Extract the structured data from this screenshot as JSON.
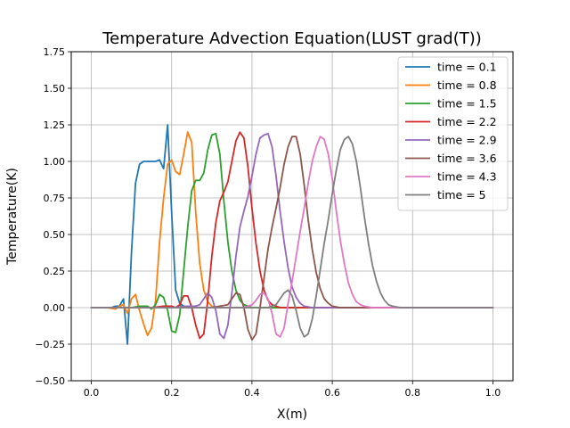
{
  "chart_data": {
    "type": "line",
    "title": "Temperature Advection Equation(LUST grad(T))",
    "xlabel": "X(m)",
    "ylabel": "Temperature(K)",
    "xlim": [
      -0.05,
      1.05
    ],
    "ylim": [
      -0.5,
      1.75
    ],
    "xticks": [
      0.0,
      0.2,
      0.4,
      0.6,
      0.8,
      1.0
    ],
    "xtick_labels": [
      "0.0",
      "0.2",
      "0.4",
      "0.6",
      "0.8",
      "1.0"
    ],
    "yticks": [
      -0.5,
      -0.25,
      0.0,
      0.25,
      0.5,
      0.75,
      1.0,
      1.25,
      1.5,
      1.75
    ],
    "ytick_labels": [
      "−0.50",
      "−0.25",
      "0.00",
      "0.25",
      "0.50",
      "0.75",
      "1.00",
      "1.25",
      "1.50",
      "1.75"
    ],
    "grid": true,
    "legend_position": "top-right",
    "series": [
      {
        "name": "time = 0.1",
        "color": "#1f77b4",
        "points": [
          [
            0.0,
            0.0
          ],
          [
            0.01,
            0.0
          ],
          [
            0.02,
            0.0
          ],
          [
            0.03,
            0.0
          ],
          [
            0.04,
            0.0
          ],
          [
            0.05,
            0.0
          ],
          [
            0.06,
            0.01
          ],
          [
            0.07,
            0.01
          ],
          [
            0.08,
            0.06
          ],
          [
            0.09,
            -0.25
          ],
          [
            0.1,
            0.38
          ],
          [
            0.11,
            0.85
          ],
          [
            0.12,
            0.98
          ],
          [
            0.13,
            1.0
          ],
          [
            0.14,
            1.0
          ],
          [
            0.15,
            1.0
          ],
          [
            0.16,
            1.0
          ],
          [
            0.17,
            1.01
          ],
          [
            0.18,
            0.95
          ],
          [
            0.19,
            1.25
          ],
          [
            0.2,
            0.65
          ],
          [
            0.21,
            0.12
          ],
          [
            0.22,
            0.03
          ],
          [
            0.23,
            0.01
          ],
          [
            0.24,
            0.0
          ],
          [
            0.25,
            0.0
          ],
          [
            0.3,
            0.0
          ],
          [
            0.4,
            0.0
          ],
          [
            0.5,
            0.0
          ],
          [
            0.6,
            0.0
          ],
          [
            0.7,
            0.0
          ],
          [
            0.8,
            0.0
          ],
          [
            0.9,
            0.0
          ],
          [
            1.0,
            0.0
          ]
        ]
      },
      {
        "name": "time = 0.8",
        "color": "#ff7f0e",
        "points": [
          [
            0.0,
            0.0
          ],
          [
            0.02,
            0.0
          ],
          [
            0.04,
            0.0
          ],
          [
            0.06,
            -0.01
          ],
          [
            0.07,
            0.01
          ],
          [
            0.08,
            0.02
          ],
          [
            0.09,
            -0.04
          ],
          [
            0.1,
            0.06
          ],
          [
            0.11,
            0.09
          ],
          [
            0.12,
            -0.02
          ],
          [
            0.13,
            -0.11
          ],
          [
            0.14,
            -0.19
          ],
          [
            0.15,
            -0.14
          ],
          [
            0.16,
            0.05
          ],
          [
            0.17,
            0.45
          ],
          [
            0.18,
            0.75
          ],
          [
            0.19,
            0.98
          ],
          [
            0.2,
            1.01
          ],
          [
            0.21,
            0.93
          ],
          [
            0.22,
            0.91
          ],
          [
            0.23,
            1.05
          ],
          [
            0.24,
            1.2
          ],
          [
            0.25,
            1.13
          ],
          [
            0.26,
            0.65
          ],
          [
            0.27,
            0.3
          ],
          [
            0.28,
            0.12
          ],
          [
            0.29,
            0.04
          ],
          [
            0.3,
            0.01
          ],
          [
            0.31,
            0.0
          ],
          [
            0.35,
            0.0
          ],
          [
            0.45,
            0.0
          ],
          [
            0.6,
            0.0
          ],
          [
            0.8,
            0.0
          ],
          [
            1.0,
            0.0
          ]
        ]
      },
      {
        "name": "time = 1.5",
        "color": "#2ca02c",
        "points": [
          [
            0.0,
            0.0
          ],
          [
            0.05,
            0.0
          ],
          [
            0.1,
            0.0
          ],
          [
            0.12,
            0.01
          ],
          [
            0.14,
            0.01
          ],
          [
            0.15,
            -0.01
          ],
          [
            0.16,
            0.02
          ],
          [
            0.17,
            0.09
          ],
          [
            0.18,
            0.07
          ],
          [
            0.19,
            -0.02
          ],
          [
            0.2,
            -0.16
          ],
          [
            0.21,
            -0.17
          ],
          [
            0.22,
            -0.05
          ],
          [
            0.23,
            0.25
          ],
          [
            0.24,
            0.55
          ],
          [
            0.25,
            0.8
          ],
          [
            0.26,
            0.87
          ],
          [
            0.27,
            0.87
          ],
          [
            0.28,
            0.92
          ],
          [
            0.29,
            1.08
          ],
          [
            0.3,
            1.18
          ],
          [
            0.31,
            1.19
          ],
          [
            0.32,
            1.05
          ],
          [
            0.33,
            0.73
          ],
          [
            0.34,
            0.45
          ],
          [
            0.35,
            0.25
          ],
          [
            0.36,
            0.12
          ],
          [
            0.37,
            0.05
          ],
          [
            0.38,
            0.02
          ],
          [
            0.39,
            0.01
          ],
          [
            0.4,
            0.0
          ],
          [
            0.5,
            0.0
          ],
          [
            0.7,
            0.0
          ],
          [
            1.0,
            0.0
          ]
        ]
      },
      {
        "name": "time = 2.2",
        "color": "#d62728",
        "points": [
          [
            0.0,
            0.0
          ],
          [
            0.05,
            0.0
          ],
          [
            0.1,
            0.0
          ],
          [
            0.15,
            0.0
          ],
          [
            0.18,
            0.01
          ],
          [
            0.2,
            0.01
          ],
          [
            0.21,
            0.0
          ],
          [
            0.22,
            0.02
          ],
          [
            0.23,
            0.08
          ],
          [
            0.24,
            0.08
          ],
          [
            0.25,
            0.0
          ],
          [
            0.26,
            -0.12
          ],
          [
            0.27,
            -0.21
          ],
          [
            0.28,
            -0.18
          ],
          [
            0.29,
            0.05
          ],
          [
            0.3,
            0.35
          ],
          [
            0.31,
            0.58
          ],
          [
            0.32,
            0.73
          ],
          [
            0.33,
            0.79
          ],
          [
            0.34,
            0.86
          ],
          [
            0.35,
            1.0
          ],
          [
            0.36,
            1.14
          ],
          [
            0.37,
            1.2
          ],
          [
            0.38,
            1.16
          ],
          [
            0.39,
            0.96
          ],
          [
            0.4,
            0.68
          ],
          [
            0.41,
            0.44
          ],
          [
            0.42,
            0.25
          ],
          [
            0.43,
            0.12
          ],
          [
            0.44,
            0.05
          ],
          [
            0.45,
            0.02
          ],
          [
            0.46,
            0.01
          ],
          [
            0.47,
            0.0
          ],
          [
            0.6,
            0.0
          ],
          [
            0.8,
            0.0
          ],
          [
            1.0,
            0.0
          ]
        ]
      },
      {
        "name": "time = 2.9",
        "color": "#9467bd",
        "points": [
          [
            0.0,
            0.0
          ],
          [
            0.1,
            0.0
          ],
          [
            0.2,
            0.0
          ],
          [
            0.24,
            0.01
          ],
          [
            0.26,
            0.01
          ],
          [
            0.27,
            0.02
          ],
          [
            0.28,
            0.06
          ],
          [
            0.29,
            0.1
          ],
          [
            0.3,
            0.07
          ],
          [
            0.31,
            -0.02
          ],
          [
            0.32,
            -0.18
          ],
          [
            0.33,
            -0.21
          ],
          [
            0.34,
            -0.12
          ],
          [
            0.35,
            0.1
          ],
          [
            0.36,
            0.35
          ],
          [
            0.37,
            0.55
          ],
          [
            0.38,
            0.66
          ],
          [
            0.39,
            0.76
          ],
          [
            0.4,
            0.9
          ],
          [
            0.41,
            1.05
          ],
          [
            0.42,
            1.16
          ],
          [
            0.43,
            1.18
          ],
          [
            0.44,
            1.19
          ],
          [
            0.45,
            1.1
          ],
          [
            0.46,
            0.9
          ],
          [
            0.47,
            0.66
          ],
          [
            0.48,
            0.45
          ],
          [
            0.49,
            0.27
          ],
          [
            0.5,
            0.14
          ],
          [
            0.51,
            0.07
          ],
          [
            0.52,
            0.03
          ],
          [
            0.53,
            0.01
          ],
          [
            0.55,
            0.0
          ],
          [
            0.7,
            0.0
          ],
          [
            1.0,
            0.0
          ]
        ]
      },
      {
        "name": "time = 3.6",
        "color": "#8c564b",
        "points": [
          [
            0.0,
            0.0
          ],
          [
            0.1,
            0.0
          ],
          [
            0.2,
            0.0
          ],
          [
            0.3,
            0.0
          ],
          [
            0.32,
            0.01
          ],
          [
            0.34,
            0.02
          ],
          [
            0.35,
            0.06
          ],
          [
            0.36,
            0.1
          ],
          [
            0.37,
            0.09
          ],
          [
            0.38,
            0.0
          ],
          [
            0.39,
            -0.15
          ],
          [
            0.4,
            -0.22
          ],
          [
            0.41,
            -0.18
          ],
          [
            0.42,
            0.0
          ],
          [
            0.43,
            0.2
          ],
          [
            0.44,
            0.4
          ],
          [
            0.45,
            0.55
          ],
          [
            0.46,
            0.68
          ],
          [
            0.47,
            0.82
          ],
          [
            0.48,
            0.98
          ],
          [
            0.49,
            1.1
          ],
          [
            0.5,
            1.17
          ],
          [
            0.51,
            1.17
          ],
          [
            0.52,
            1.05
          ],
          [
            0.53,
            0.84
          ],
          [
            0.54,
            0.6
          ],
          [
            0.55,
            0.4
          ],
          [
            0.56,
            0.24
          ],
          [
            0.57,
            0.13
          ],
          [
            0.58,
            0.06
          ],
          [
            0.59,
            0.03
          ],
          [
            0.6,
            0.01
          ],
          [
            0.62,
            0.0
          ],
          [
            0.8,
            0.0
          ],
          [
            1.0,
            0.0
          ]
        ]
      },
      {
        "name": "time = 4.3",
        "color": "#e377c2",
        "points": [
          [
            0.0,
            0.0
          ],
          [
            0.1,
            0.0
          ],
          [
            0.2,
            0.0
          ],
          [
            0.3,
            0.0
          ],
          [
            0.38,
            0.0
          ],
          [
            0.4,
            0.02
          ],
          [
            0.41,
            0.05
          ],
          [
            0.42,
            0.09
          ],
          [
            0.43,
            0.1
          ],
          [
            0.44,
            0.06
          ],
          [
            0.45,
            -0.04
          ],
          [
            0.46,
            -0.18
          ],
          [
            0.47,
            -0.2
          ],
          [
            0.48,
            -0.14
          ],
          [
            0.49,
            0.03
          ],
          [
            0.5,
            0.18
          ],
          [
            0.51,
            0.35
          ],
          [
            0.52,
            0.52
          ],
          [
            0.53,
            0.68
          ],
          [
            0.54,
            0.85
          ],
          [
            0.55,
            1.0
          ],
          [
            0.56,
            1.1
          ],
          [
            0.57,
            1.17
          ],
          [
            0.58,
            1.15
          ],
          [
            0.59,
            1.05
          ],
          [
            0.6,
            0.88
          ],
          [
            0.61,
            0.66
          ],
          [
            0.62,
            0.46
          ],
          [
            0.63,
            0.3
          ],
          [
            0.64,
            0.17
          ],
          [
            0.65,
            0.09
          ],
          [
            0.66,
            0.04
          ],
          [
            0.67,
            0.02
          ],
          [
            0.68,
            0.01
          ],
          [
            0.7,
            0.0
          ],
          [
            0.8,
            0.0
          ],
          [
            1.0,
            0.0
          ]
        ]
      },
      {
        "name": "time = 5",
        "color": "#7f7f7f",
        "points": [
          [
            0.0,
            0.0
          ],
          [
            0.1,
            0.0
          ],
          [
            0.2,
            0.0
          ],
          [
            0.3,
            0.0
          ],
          [
            0.4,
            0.0
          ],
          [
            0.44,
            0.0
          ],
          [
            0.46,
            0.02
          ],
          [
            0.47,
            0.06
          ],
          [
            0.48,
            0.1
          ],
          [
            0.49,
            0.12
          ],
          [
            0.5,
            0.08
          ],
          [
            0.51,
            -0.02
          ],
          [
            0.52,
            -0.14
          ],
          [
            0.53,
            -0.2
          ],
          [
            0.54,
            -0.18
          ],
          [
            0.55,
            -0.08
          ],
          [
            0.56,
            0.08
          ],
          [
            0.57,
            0.26
          ],
          [
            0.58,
            0.44
          ],
          [
            0.59,
            0.6
          ],
          [
            0.6,
            0.78
          ],
          [
            0.61,
            0.94
          ],
          [
            0.62,
            1.08
          ],
          [
            0.63,
            1.15
          ],
          [
            0.64,
            1.17
          ],
          [
            0.65,
            1.12
          ],
          [
            0.66,
            1.0
          ],
          [
            0.67,
            0.82
          ],
          [
            0.68,
            0.62
          ],
          [
            0.69,
            0.44
          ],
          [
            0.7,
            0.29
          ],
          [
            0.71,
            0.18
          ],
          [
            0.72,
            0.1
          ],
          [
            0.73,
            0.05
          ],
          [
            0.74,
            0.02
          ],
          [
            0.75,
            0.01
          ],
          [
            0.77,
            0.0
          ],
          [
            0.85,
            0.0
          ],
          [
            1.0,
            0.0
          ]
        ]
      }
    ]
  }
}
